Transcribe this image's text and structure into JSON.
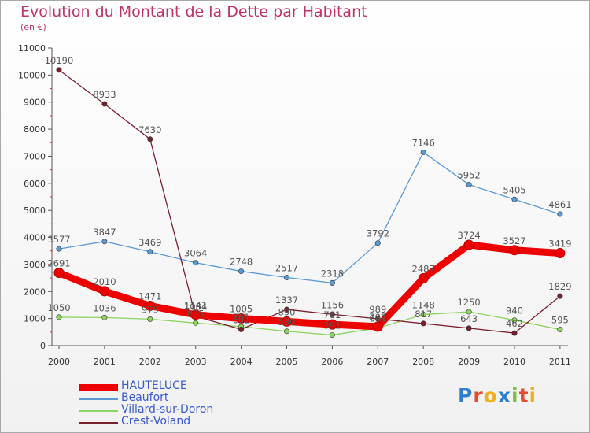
{
  "chart_data": {
    "type": "line",
    "title": "Evolution du Montant de la Dette par Habitant",
    "subtitle": "(en €)",
    "x": [
      "2000",
      "2001",
      "2002",
      "2003",
      "2004",
      "2005",
      "2006",
      "2007",
      "2008",
      "2009",
      "2010",
      "2011"
    ],
    "ylim": [
      0,
      11000
    ],
    "yticks": [
      0,
      1000,
      2000,
      3000,
      4000,
      5000,
      6000,
      7000,
      8000,
      9000,
      10000,
      11000
    ],
    "series": [
      {
        "name": "HAUTELUCE",
        "color": "#ee0000",
        "values": [
          2691,
          2010,
          1471,
          1141,
          1005,
          890,
          781,
          702,
          2487,
          3724,
          3527,
          3419
        ]
      },
      {
        "name": "Beaufort",
        "color": "#5b9ad5",
        "values": [
          3577,
          3847,
          3469,
          3064,
          2748,
          2517,
          2318,
          3792,
          7146,
          5952,
          5405,
          4861
        ]
      },
      {
        "name": "Villard-sur-Doron",
        "color": "#8dd35f",
        "values": [
          1050,
          1036,
          979,
          835,
          701,
          530,
          391,
          649,
          1148,
          1250,
          940,
          595
        ]
      },
      {
        "name": "Crest-Voland",
        "color": "#7a1f2e",
        "values": [
          10190,
          8933,
          7630,
          1084,
          601,
          1337,
          1156,
          989,
          817,
          643,
          462,
          1829
        ]
      }
    ],
    "grid": false,
    "legend_position": "bottom-left"
  },
  "brand": {
    "letters": [
      "P",
      "r",
      "o",
      "x",
      "i",
      "t",
      "i"
    ],
    "colors": [
      "#2f7fd1",
      "#e64a2f",
      "#f2b01e",
      "#2f7fd1",
      "#7cc242",
      "#e64a2f",
      "#f2b01e"
    ]
  }
}
